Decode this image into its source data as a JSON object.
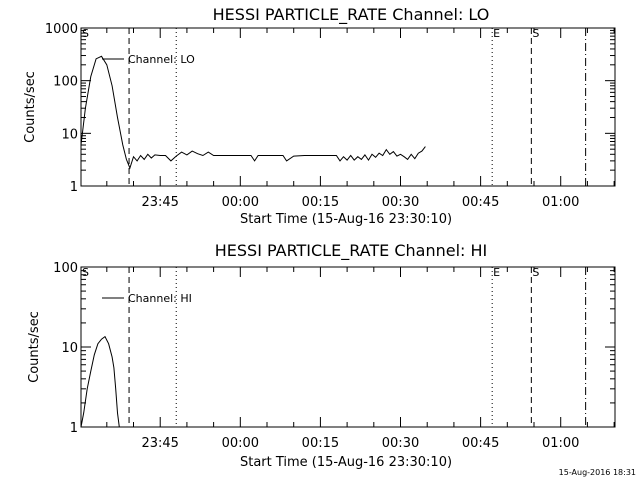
{
  "chart_data": [
    {
      "type": "line",
      "title": "HESSI PARTICLE_RATE Channel: LO",
      "xlabel": "Start Time (15-Aug-16 23:30:10)",
      "ylabel": "Counts/sec",
      "yscale": "log",
      "ylim": [
        1,
        1000
      ],
      "xlim": [
        "23:30:10",
        "01:10:10"
      ],
      "x_ticks": [
        "23:45",
        "00:00",
        "00:15",
        "00:30",
        "00:45",
        "01:00"
      ],
      "y_ticks": [
        "1",
        "10",
        "100",
        "1000"
      ],
      "legend": {
        "position": "top-left",
        "entries": [
          "Channel: LO"
        ]
      },
      "grid": false,
      "markers": [
        {
          "label": "S",
          "time": "23:30:10",
          "style": "solid"
        },
        {
          "label": "",
          "time": "23:39:10",
          "style": "dashed"
        },
        {
          "label": "",
          "time": "23:48:00",
          "style": "dotted"
        },
        {
          "label": "E",
          "time": "00:47:10",
          "style": "dotted"
        },
        {
          "label": "S",
          "time": "00:54:30",
          "style": "dashed"
        },
        {
          "label": "",
          "time": "01:04:40",
          "style": "dashdot"
        }
      ],
      "series": [
        {
          "name": "Channel: LO",
          "x": [
            "23:30:10",
            "23:31:00",
            "23:32:00",
            "23:33:00",
            "23:34:00",
            "23:35:00",
            "23:36:00",
            "23:37:00",
            "23:38:00",
            "23:38:40",
            "23:39:20",
            "23:40:00",
            "23:40:40",
            "23:41:20",
            "23:42:00",
            "23:42:40",
            "23:43:20",
            "23:44:00",
            "23:45:00",
            "23:46:00",
            "23:47:00",
            "23:48:00",
            "23:49:00",
            "23:50:00",
            "23:51:00",
            "23:52:00",
            "23:53:00",
            "23:54:00",
            "23:55:00",
            "23:56:00",
            "23:57:00",
            "23:58:00",
            "00:00:00",
            "00:02:00",
            "00:02:40",
            "00:03:20",
            "00:05:00",
            "00:07:00",
            "00:08:00",
            "00:08:40",
            "00:10:00",
            "00:12:00",
            "00:14:00",
            "00:17:00",
            "00:18:00",
            "00:18:40",
            "00:19:20",
            "00:20:00",
            "00:20:40",
            "00:21:20",
            "00:22:00",
            "00:22:40",
            "00:23:20",
            "00:24:00",
            "00:24:40",
            "00:25:20",
            "00:26:00",
            "00:26:40",
            "00:27:20",
            "00:28:00",
            "00:28:40",
            "00:29:20",
            "00:30:00",
            "00:30:40",
            "00:31:20",
            "00:32:00",
            "00:32:40",
            "00:33:20",
            "00:34:00",
            "00:34:40"
          ],
          "y": [
            6,
            30,
            120,
            260,
            290,
            200,
            80,
            20,
            6,
            3.2,
            2.2,
            3.6,
            3.0,
            3.8,
            3.2,
            4.0,
            3.4,
            3.9,
            3.8,
            3.8,
            3.0,
            3.7,
            4.4,
            3.9,
            4.6,
            4.1,
            3.8,
            4.4,
            3.8,
            3.8,
            3.8,
            3.8,
            3.8,
            3.8,
            3.0,
            3.8,
            3.8,
            3.8,
            3.8,
            3.0,
            3.7,
            3.8,
            3.8,
            3.8,
            3.8,
            3.0,
            3.6,
            3.1,
            3.8,
            3.1,
            3.6,
            3.2,
            3.9,
            3.1,
            4.0,
            3.5,
            4.2,
            3.8,
            4.9,
            4.0,
            4.5,
            3.7,
            4.0,
            3.6,
            3.2,
            4.0,
            3.3,
            4.2,
            4.6,
            5.6
          ]
        }
      ]
    },
    {
      "type": "line",
      "title": "HESSI PARTICLE_RATE Channel: HI",
      "xlabel": "Start Time (15-Aug-16 23:30:10)",
      "ylabel": "Counts/sec",
      "yscale": "log",
      "ylim": [
        1,
        100
      ],
      "xlim": [
        "23:30:10",
        "01:10:10"
      ],
      "x_ticks": [
        "23:45",
        "00:00",
        "00:15",
        "00:30",
        "00:45",
        "01:00"
      ],
      "y_ticks": [
        "1",
        "10",
        "100"
      ],
      "legend": {
        "position": "top-left",
        "entries": [
          "Channel: HI"
        ]
      },
      "grid": false,
      "markers": [
        {
          "label": "S",
          "time": "23:30:10",
          "style": "solid"
        },
        {
          "label": "",
          "time": "23:39:10",
          "style": "dashed"
        },
        {
          "label": "",
          "time": "23:48:00",
          "style": "dotted"
        },
        {
          "label": "E",
          "time": "00:47:10",
          "style": "dotted"
        },
        {
          "label": "S",
          "time": "00:54:30",
          "style": "dashed"
        },
        {
          "label": "",
          "time": "01:04:40",
          "style": "dashdot"
        }
      ],
      "series": [
        {
          "name": "Channel: HI",
          "x": [
            "23:30:10",
            "23:30:40",
            "23:31:20",
            "23:32:00",
            "23:32:40",
            "23:33:20",
            "23:34:00",
            "23:34:40",
            "23:35:20",
            "23:36:00",
            "23:36:20",
            "23:36:40",
            "23:37:00",
            "23:37:20"
          ],
          "y": [
            1.0,
            1.5,
            3.0,
            5.0,
            8.0,
            11,
            12.5,
            13.5,
            11,
            7.5,
            5.5,
            3.0,
            1.5,
            1.0
          ]
        }
      ]
    }
  ],
  "footer": {
    "timestamp": "15-Aug-2016 18:31"
  }
}
